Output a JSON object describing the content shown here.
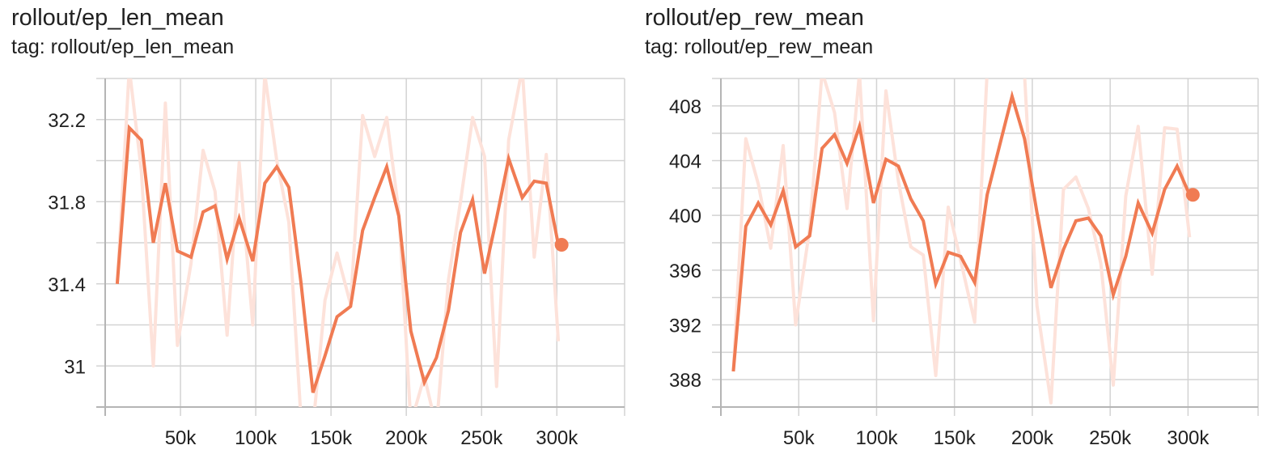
{
  "colors": {
    "smoothed": "#f07b53",
    "raw": "#fde2da",
    "grid": "#d3d3d3",
    "axis": "#b5b5b5"
  },
  "chart_data": [
    {
      "type": "line",
      "title": "rollout/ep_len_mean",
      "tag_label": "tag: rollout/ep_len_mean",
      "xlim": [
        0,
        345000
      ],
      "ylim": [
        30.8,
        32.4
      ],
      "x_ticks": [
        50000,
        100000,
        150000,
        200000,
        250000,
        300000
      ],
      "x_tick_labels": [
        "50k",
        "100k",
        "150k",
        "200k",
        "250k",
        "300k"
      ],
      "y_ticks": [
        31,
        31.4,
        31.8,
        32.2
      ],
      "y_tick_labels": [
        "31",
        "31.4",
        "31.8",
        "32.2"
      ],
      "y_minor_ticks": [
        30.8,
        31.2,
        31.6,
        32.0,
        32.4
      ],
      "grid": true,
      "series": [
        {
          "role": "raw",
          "x": [
            8000,
            16000,
            24000,
            32000,
            40000,
            48000,
            57000,
            65000,
            73000,
            81000,
            89000,
            98000,
            106000,
            114000,
            122000,
            130000,
            138000,
            146000,
            154000,
            163000,
            171000,
            179000,
            187000,
            195000,
            203000,
            212000,
            220000,
            228000,
            236000,
            244000,
            252000,
            260000,
            268000,
            277000,
            285000,
            293000,
            301000
          ],
          "y": [
            31.4,
            32.45,
            31.95,
            31.0,
            32.28,
            31.1,
            31.5,
            32.05,
            31.85,
            31.15,
            31.99,
            31.2,
            32.42,
            32.0,
            31.7,
            30.75,
            30.7,
            31.32,
            31.55,
            31.3,
            32.22,
            32.02,
            32.21,
            31.75,
            30.72,
            30.95,
            30.7,
            31.42,
            31.8,
            32.21,
            32.02,
            30.9,
            32.1,
            32.45,
            31.53,
            32.03,
            31.12
          ]
        },
        {
          "role": "smoothed",
          "x": [
            8000,
            16000,
            24000,
            32000,
            40000,
            48000,
            57000,
            65000,
            73000,
            81000,
            89000,
            98000,
            106000,
            114000,
            122000,
            130000,
            138000,
            146000,
            154000,
            163000,
            171000,
            179000,
            187000,
            195000,
            203000,
            212000,
            220000,
            228000,
            236000,
            244000,
            252000,
            260000,
            268000,
            277000,
            285000,
            293000,
            301000
          ],
          "y": [
            31.4,
            32.16,
            32.1,
            31.6,
            31.89,
            31.56,
            31.53,
            31.75,
            31.78,
            31.52,
            31.72,
            31.51,
            31.89,
            31.97,
            31.87,
            31.41,
            30.87,
            31.05,
            31.24,
            31.29,
            31.66,
            31.82,
            31.97,
            31.73,
            31.17,
            30.92,
            31.04,
            31.27,
            31.65,
            31.81,
            31.45,
            31.72,
            32.01,
            31.82,
            31.9,
            31.89,
            31.59
          ]
        }
      ]
    },
    {
      "type": "line",
      "title": "rollout/ep_rew_mean",
      "tag_label": "tag: rollout/ep_rew_mean",
      "xlim": [
        0,
        345000
      ],
      "ylim": [
        386,
        410
      ],
      "x_ticks": [
        50000,
        100000,
        150000,
        200000,
        250000,
        300000
      ],
      "x_tick_labels": [
        "50k",
        "100k",
        "150k",
        "200k",
        "250k",
        "300k"
      ],
      "y_ticks": [
        388,
        392,
        396,
        400,
        404,
        408
      ],
      "y_tick_labels": [
        "388",
        "392",
        "396",
        "400",
        "404",
        "408"
      ],
      "y_minor_ticks": [
        386,
        390,
        394,
        398,
        402,
        406,
        410
      ],
      "grid": true,
      "series": [
        {
          "role": "raw",
          "x": [
            8000,
            16000,
            24000,
            32000,
            40000,
            48000,
            57000,
            65000,
            73000,
            81000,
            89000,
            98000,
            106000,
            114000,
            122000,
            130000,
            138000,
            146000,
            154000,
            163000,
            171000,
            179000,
            187000,
            195000,
            203000,
            212000,
            220000,
            228000,
            236000,
            244000,
            252000,
            260000,
            268000,
            277000,
            285000,
            293000,
            301000
          ],
          "y": [
            388.6,
            405.6,
            402.3,
            397.6,
            405.1,
            392.0,
            399.0,
            410.5,
            407.5,
            400.5,
            410.4,
            392.3,
            409.1,
            402.5,
            397.7,
            397.1,
            388.3,
            400.6,
            396.7,
            392.2,
            410.5,
            411.0,
            410.8,
            410.3,
            393.4,
            386.3,
            401.9,
            402.8,
            400.5,
            396.5,
            387.6,
            401.4,
            406.5,
            395.7,
            406.4,
            406.3,
            398.4
          ]
        },
        {
          "role": "smoothed",
          "x": [
            8000,
            16000,
            24000,
            32000,
            40000,
            48000,
            57000,
            65000,
            73000,
            81000,
            89000,
            98000,
            106000,
            114000,
            122000,
            130000,
            138000,
            146000,
            154000,
            163000,
            171000,
            179000,
            187000,
            195000,
            203000,
            212000,
            220000,
            228000,
            236000,
            244000,
            252000,
            260000,
            268000,
            277000,
            285000,
            293000,
            301000
          ],
          "y": [
            388.6,
            399.2,
            400.9,
            399.3,
            401.8,
            397.7,
            398.5,
            404.9,
            405.9,
            403.8,
            406.5,
            400.9,
            404.1,
            403.6,
            401.2,
            399.6,
            395.0,
            397.3,
            397.0,
            395.1,
            401.5,
            405.1,
            408.7,
            405.6,
            400.2,
            394.7,
            397.5,
            399.6,
            399.8,
            398.5,
            394.2,
            397.0,
            400.9,
            398.7,
            401.9,
            403.6,
            401.5
          ]
        }
      ]
    }
  ]
}
